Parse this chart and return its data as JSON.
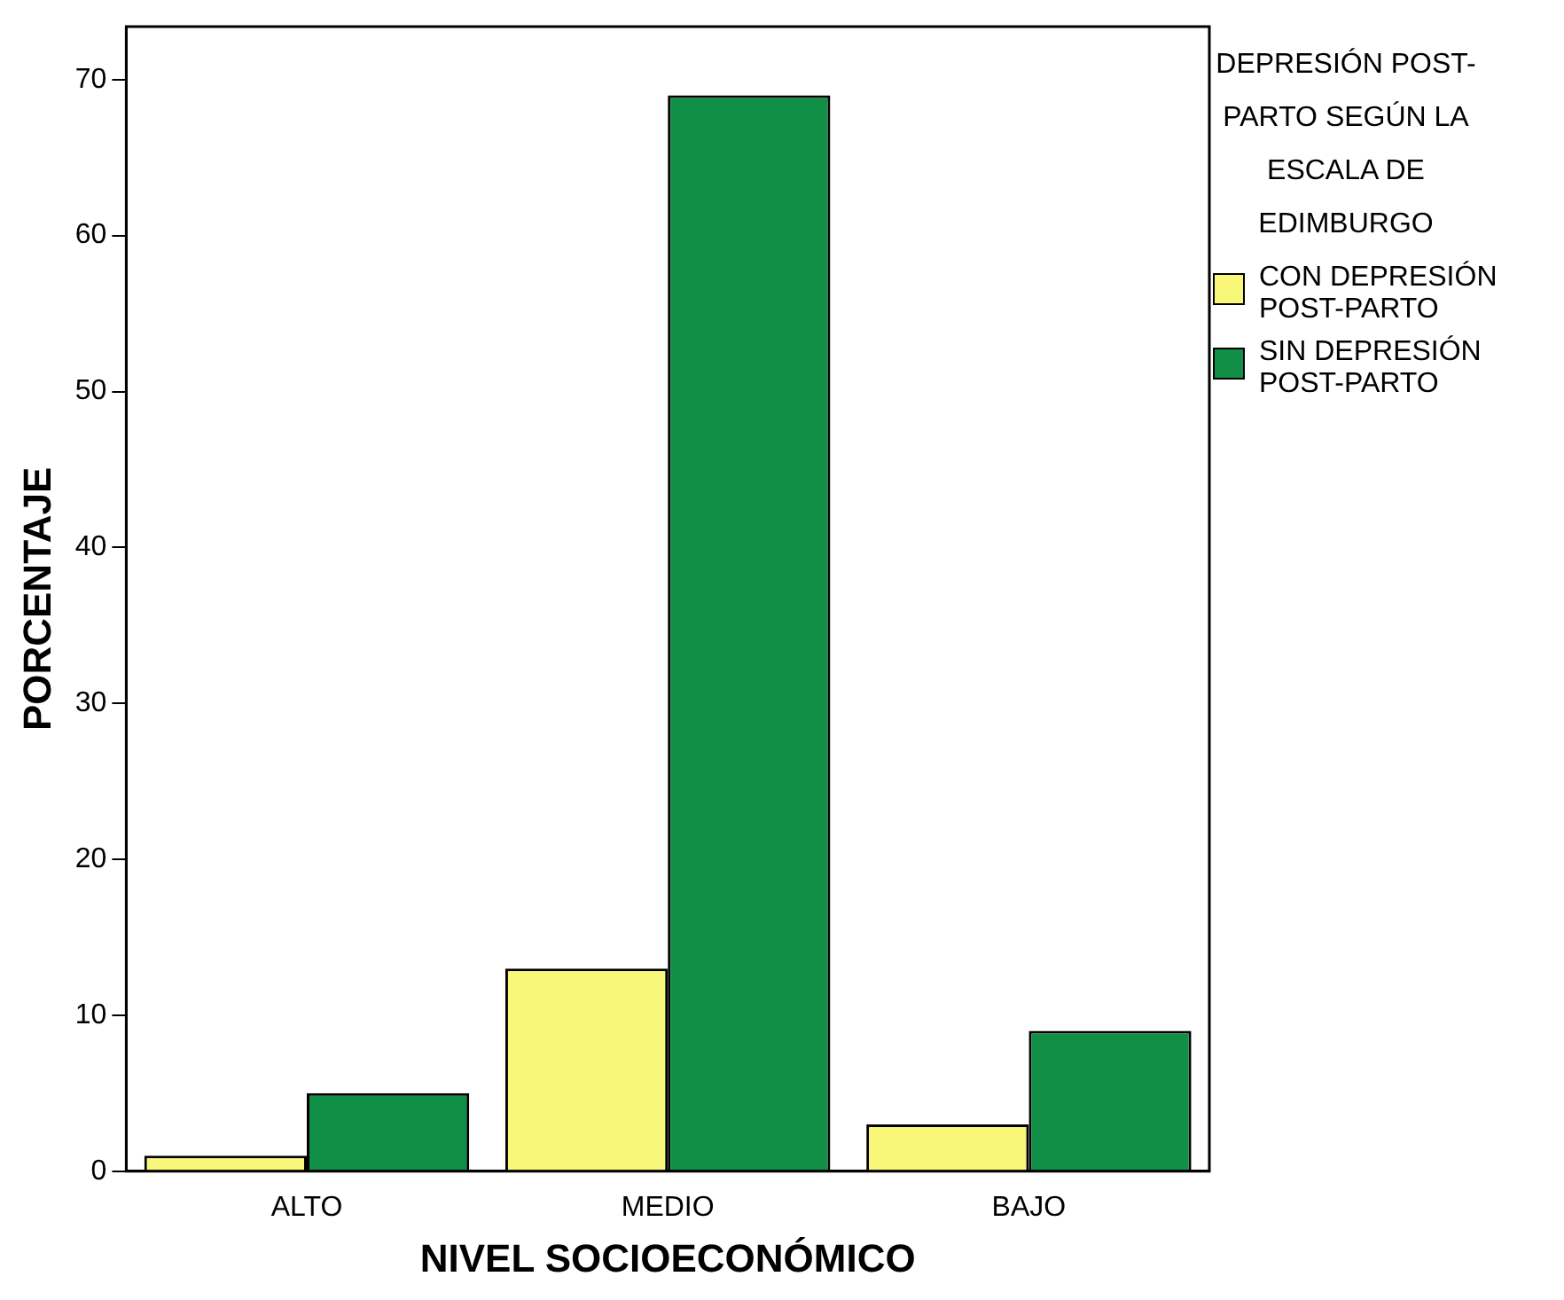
{
  "chart_data": {
    "type": "bar",
    "xlabel": "NIVEL SOCIOECONÓMICO",
    "ylabel": "PORCENTAJE",
    "legend_title": "DEPRESIÓN POST-PARTO SEGÚN LA ESCALA DE EDIMBURGO",
    "categories": [
      "ALTO",
      "MEDIO",
      "BAJO"
    ],
    "series": [
      {
        "name": "CON DEPRESIÓN POST-PARTO",
        "color": "#f8f77a",
        "values": [
          1,
          13,
          3
        ]
      },
      {
        "name": "SIN DEPRESIÓN POST-PARTO",
        "color": "#128f47",
        "values": [
          5,
          69,
          9
        ]
      }
    ],
    "ylim": [
      0,
      73.4
    ],
    "yticks": [
      0,
      10,
      20,
      30,
      40,
      50,
      60,
      70
    ],
    "grid": false,
    "legend": "top right"
  }
}
